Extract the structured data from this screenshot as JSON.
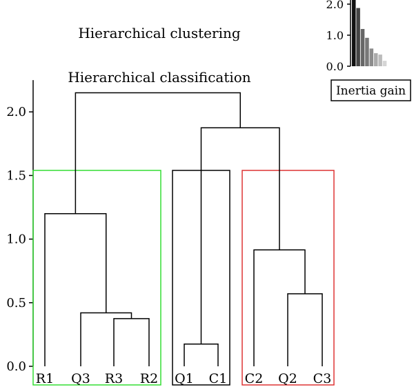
{
  "chart_data": {
    "type": "dendrogram",
    "title": "Hierarchical clustering",
    "subtitle": "Hierarchical classification",
    "ylim": [
      0,
      2.25
    ],
    "yticks": [
      {
        "value": 0.0,
        "label": "0.0"
      },
      {
        "value": 0.5,
        "label": "0.5"
      },
      {
        "value": 1.0,
        "label": "1.0"
      },
      {
        "value": 1.5,
        "label": "1.5"
      },
      {
        "value": 2.0,
        "label": "2.0"
      }
    ],
    "leaves": [
      "R1",
      "Q3",
      "R3",
      "R2",
      "Q1",
      "C1",
      "C2",
      "Q2",
      "C3"
    ],
    "merges": [
      {
        "id": "m1",
        "left": "R3",
        "right": "R2",
        "height": 0.375
      },
      {
        "id": "m2",
        "left": "Q3",
        "right": "m1",
        "height": 0.42
      },
      {
        "id": "m3",
        "left": "R1",
        "right": "m2",
        "height": 1.2
      },
      {
        "id": "m4",
        "left": "Q1",
        "right": "C1",
        "height": 0.175
      },
      {
        "id": "m5",
        "left": "Q2",
        "right": "C3",
        "height": 0.57
      },
      {
        "id": "m6",
        "left": "C2",
        "right": "m5",
        "height": 0.915
      },
      {
        "id": "m7",
        "left": "m4",
        "right": "m6",
        "height": 1.875
      },
      {
        "id": "m8",
        "left": "m3",
        "right": "m7",
        "height": 2.15
      }
    ],
    "clusters": [
      {
        "leaves": [
          "R1",
          "Q3",
          "R3",
          "R2"
        ],
        "color": "#33dd33",
        "cut": 1.54
      },
      {
        "leaves": [
          "Q1",
          "C1"
        ],
        "color": "#000000",
        "cut": 1.54
      },
      {
        "leaves": [
          "C2",
          "Q2",
          "C3"
        ],
        "color": "#dd3333",
        "cut": 1.54
      }
    ],
    "inset": {
      "type": "bar",
      "legend": "Inertia gain",
      "ylim": [
        0,
        2.15
      ],
      "yticks": [
        {
          "value": 0.0,
          "label": "0.0"
        },
        {
          "value": 1.0,
          "label": "1.0"
        },
        {
          "value": 2.0,
          "label": "2.0"
        }
      ],
      "values": [
        2.15,
        1.875,
        1.2,
        0.915,
        0.57,
        0.42,
        0.375,
        0.175
      ],
      "colors": [
        "#111111",
        "#444444",
        "#666666",
        "#777777",
        "#8c8c8c",
        "#aaaaaa",
        "#bbbbbb",
        "#d5d5d5"
      ]
    }
  }
}
